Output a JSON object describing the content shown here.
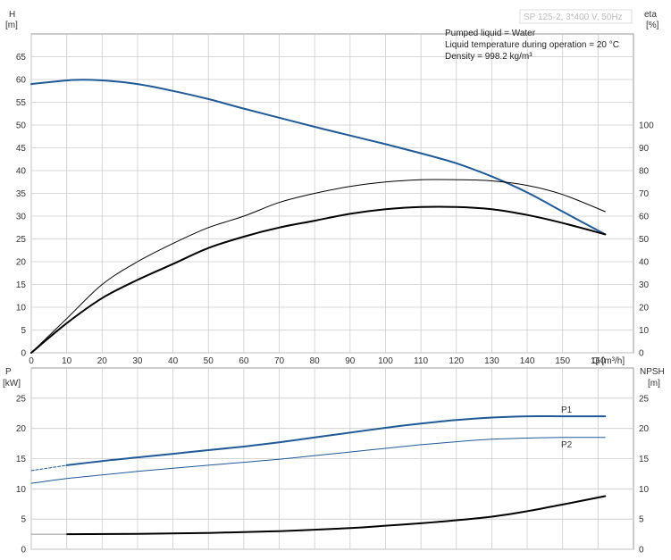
{
  "chart_data": [
    {
      "type": "line",
      "title": "SP 125-2, 3*400 V, 50Hz",
      "info_lines": [
        "Pumped liquid = Water",
        "Liquid temperature during operation = 20 °C",
        "Density = 998.2 kg/m³"
      ],
      "xlabel": "Q [m³/h]",
      "ylabel_left": "H",
      "ylabel_left_unit": "[m]",
      "ylabel_right": "eta",
      "ylabel_right_unit": "[%]",
      "xlim": [
        0,
        170
      ],
      "ylim_left": [
        0,
        70
      ],
      "ylim_right": [
        0,
        140
      ],
      "x_ticks": [
        0,
        10,
        20,
        30,
        40,
        50,
        60,
        70,
        80,
        90,
        100,
        110,
        120,
        130,
        140,
        150,
        160
      ],
      "y_ticks_left": [
        0,
        5,
        10,
        15,
        20,
        25,
        30,
        35,
        40,
        45,
        50,
        55,
        60,
        65
      ],
      "y_ticks_right": [
        0,
        10,
        20,
        30,
        40,
        50,
        60,
        70,
        80,
        90,
        100
      ],
      "grid": true,
      "series": [
        {
          "axis": "left",
          "color": "#1f5a96",
          "width": 2,
          "x": [
            0,
            12,
            20,
            30,
            40,
            50,
            60,
            70,
            80,
            90,
            100,
            110,
            120,
            130,
            140,
            150,
            162
          ],
          "y": [
            59,
            59.9,
            59.8,
            59,
            57.5,
            55.7,
            53.6,
            51.6,
            49.6,
            47.7,
            45.8,
            43.8,
            41.6,
            38.7,
            35.2,
            31,
            26
          ]
        },
        {
          "axis": "right",
          "color": "#000000",
          "width": 1,
          "x": [
            0,
            10,
            20,
            30,
            40,
            50,
            60,
            70,
            80,
            90,
            100,
            110,
            120,
            130,
            140,
            150,
            162
          ],
          "y": [
            0,
            15,
            30,
            40,
            48,
            55,
            60,
            66,
            70,
            73,
            75,
            76,
            76,
            75.5,
            73.5,
            69.5,
            62
          ]
        },
        {
          "axis": "right",
          "color": "#000000",
          "width": 2,
          "x": [
            0,
            10,
            20,
            30,
            40,
            50,
            60,
            70,
            80,
            90,
            100,
            110,
            120,
            130,
            140,
            150,
            162
          ],
          "y": [
            0,
            13,
            24,
            32,
            39,
            46,
            51,
            55,
            58,
            61,
            63,
            64,
            64,
            63,
            60.5,
            57,
            52
          ]
        }
      ]
    },
    {
      "type": "line",
      "xlim": [
        0,
        170
      ],
      "ylabel_left": "P",
      "ylabel_left_unit": "[kW]",
      "ylabel_right": "NPSH",
      "ylabel_right_unit": "[m]",
      "ylim_left": [
        0,
        30
      ],
      "ylim_right": [
        0,
        30
      ],
      "y_ticks_left": [
        0,
        5,
        10,
        15,
        20,
        25
      ],
      "y_ticks_right": [
        0,
        5,
        10,
        15,
        20,
        25
      ],
      "grid": true,
      "series": [
        {
          "name": "P1",
          "axis": "left",
          "color": "#1f5a96",
          "width": 2,
          "x": [
            10,
            20,
            30,
            40,
            50,
            60,
            70,
            80,
            90,
            100,
            110,
            120,
            130,
            140,
            150,
            162
          ],
          "y": [
            13.9,
            14.6,
            15.2,
            15.8,
            16.4,
            17,
            17.7,
            18.5,
            19.3,
            20.1,
            20.8,
            21.4,
            21.8,
            22,
            22,
            22
          ]
        },
        {
          "name": "",
          "axis": "left",
          "color": "#1f5a96",
          "width": 1,
          "dashed": true,
          "x": [
            0,
            10
          ],
          "y": [
            13,
            13.9
          ]
        },
        {
          "name": "P2",
          "axis": "left",
          "color": "#1f5a96",
          "width": 1,
          "x": [
            0,
            10,
            20,
            30,
            40,
            50,
            60,
            70,
            80,
            90,
            100,
            110,
            120,
            130,
            140,
            150,
            162
          ],
          "y": [
            10.9,
            11.7,
            12.3,
            12.9,
            13.4,
            13.9,
            14.4,
            14.9,
            15.5,
            16.1,
            16.7,
            17.3,
            17.8,
            18.2,
            18.4,
            18.5,
            18.5
          ]
        },
        {
          "name": "",
          "axis": "right",
          "color": "#000000",
          "width": 2,
          "x": [
            10,
            30,
            50,
            70,
            90,
            100,
            110,
            120,
            130,
            140,
            150,
            162
          ],
          "y": [
            2.5,
            2.55,
            2.7,
            3,
            3.5,
            3.9,
            4.3,
            4.8,
            5.4,
            6.3,
            7.4,
            8.8
          ]
        },
        {
          "name": "",
          "axis": "right",
          "color": "#999999",
          "width": 1,
          "x": [
            0,
            10
          ],
          "y": [
            2.5,
            2.5
          ]
        }
      ]
    }
  ]
}
